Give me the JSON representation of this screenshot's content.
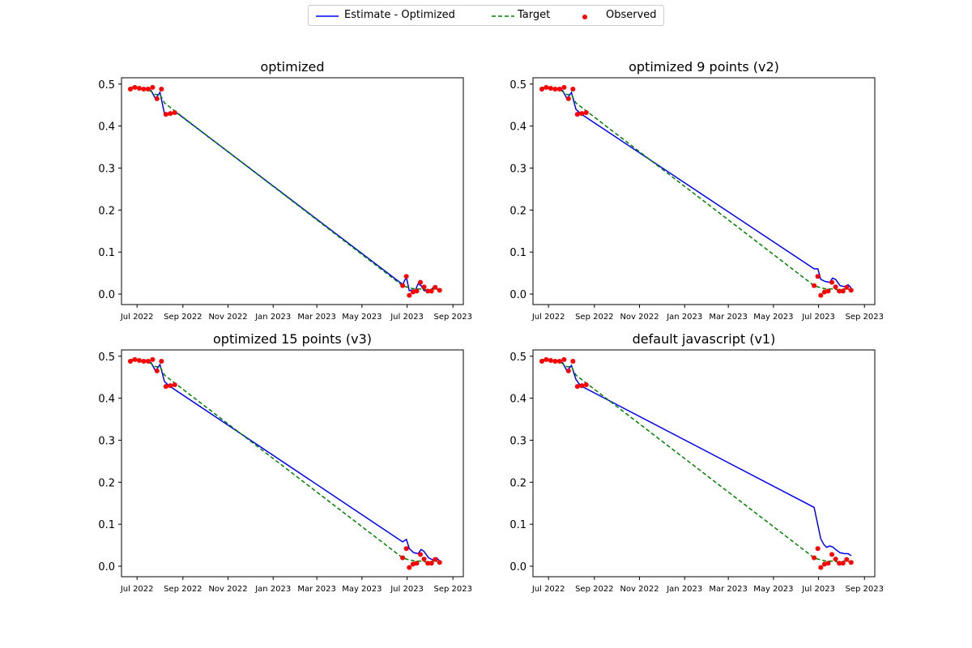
{
  "legend": {
    "items": [
      {
        "label": "Estimate - Optimized",
        "color": "#0000ff",
        "style": "solid"
      },
      {
        "label": "Target",
        "color": "#008000",
        "style": "dashed"
      },
      {
        "label": "Observed",
        "color": "#ff0000",
        "style": "marker"
      }
    ]
  },
  "chart_data": [
    {
      "type": "line",
      "title": "optimized",
      "ylim": [
        -0.025,
        0.515
      ],
      "yticks": [
        0.0,
        0.1,
        0.2,
        0.3,
        0.4,
        0.5
      ],
      "xticks": [
        "Jul 2022",
        "Sep 2022",
        "Nov 2022",
        "Jan 2023",
        "Mar 2023",
        "May 2023",
        "Jul 2023",
        "Sep 2023"
      ],
      "xlim": [
        "2022-06-10",
        "2023-09-15"
      ],
      "series": [
        {
          "name": "Estimate - Optimized",
          "x": [
            "2022-06-22",
            "2022-06-26",
            "2022-07-02",
            "2022-07-08",
            "2022-07-14",
            "2022-07-20",
            "2022-07-26",
            "2022-08-01",
            "2022-08-07",
            "2022-08-13",
            "2022-08-19",
            "2022-08-25",
            "2023-06-25",
            "2023-06-30",
            "2023-07-04",
            "2023-07-08",
            "2023-07-12",
            "2023-07-16",
            "2023-07-20",
            "2023-07-24",
            "2023-07-28",
            "2023-08-01",
            "2023-08-05",
            "2023-08-10",
            "2023-08-14"
          ],
          "values": [
            0.49,
            0.492,
            0.49,
            0.488,
            0.488,
            0.485,
            0.465,
            0.48,
            0.43,
            0.43,
            0.432,
            0.43,
            0.023,
            0.04,
            0.008,
            0.01,
            0.008,
            0.025,
            0.02,
            0.008,
            0.01,
            0.008,
            0.015,
            0.012,
            0.01
          ]
        },
        {
          "name": "Target",
          "x": [
            "2022-06-22",
            "2022-07-02",
            "2022-07-14",
            "2022-07-26",
            "2022-08-01",
            "2022-08-07",
            "2023-06-25",
            "2023-07-04",
            "2023-07-12",
            "2023-07-20",
            "2023-07-28",
            "2023-08-05",
            "2023-08-14"
          ],
          "values": [
            0.492,
            0.492,
            0.49,
            0.475,
            0.475,
            0.455,
            0.02,
            0.015,
            0.012,
            0.012,
            0.01,
            0.012,
            0.01
          ]
        },
        {
          "name": "Observed",
          "x": [
            "2022-06-22",
            "2022-06-28",
            "2022-07-04",
            "2022-07-10",
            "2022-07-16",
            "2022-07-22",
            "2022-07-28",
            "2022-08-03",
            "2022-08-09",
            "2022-08-15",
            "2022-08-21",
            "2023-06-25",
            "2023-06-30",
            "2023-07-04",
            "2023-07-09",
            "2023-07-14",
            "2023-07-19",
            "2023-07-24",
            "2023-07-29",
            "2023-08-03",
            "2023-08-08",
            "2023-08-14"
          ],
          "values": [
            0.488,
            0.492,
            0.49,
            0.488,
            0.488,
            0.492,
            0.465,
            0.488,
            0.428,
            0.43,
            0.432,
            0.02,
            0.042,
            -0.003,
            0.005,
            0.007,
            0.028,
            0.017,
            0.007,
            0.007,
            0.016,
            0.009
          ]
        }
      ]
    },
    {
      "type": "line",
      "title": "optimized 9 points (v2)",
      "ylim": [
        -0.025,
        0.515
      ],
      "yticks": [
        0.0,
        0.1,
        0.2,
        0.3,
        0.4,
        0.5
      ],
      "xticks": [
        "Jul 2022",
        "Sep 2022",
        "Nov 2022",
        "Jan 2023",
        "Mar 2023",
        "May 2023",
        "Jul 2023",
        "Sep 2023"
      ],
      "xlim": [
        "2022-06-10",
        "2023-09-15"
      ],
      "series": [
        {
          "name": "Estimate - Optimized",
          "x": [
            "2022-06-22",
            "2022-07-02",
            "2022-07-14",
            "2022-07-20",
            "2022-07-26",
            "2022-08-01",
            "2022-08-07",
            "2022-08-13",
            "2023-06-25",
            "2023-06-30",
            "2023-07-04",
            "2023-07-10",
            "2023-07-16",
            "2023-07-20",
            "2023-07-24",
            "2023-07-30",
            "2023-08-05",
            "2023-08-10",
            "2023-08-14"
          ],
          "values": [
            0.49,
            0.49,
            0.488,
            0.485,
            0.465,
            0.48,
            0.44,
            0.43,
            0.06,
            0.06,
            0.035,
            0.03,
            0.028,
            0.038,
            0.035,
            0.02,
            0.018,
            0.022,
            0.015
          ]
        },
        {
          "name": "Target",
          "x": [
            "2022-06-22",
            "2022-07-02",
            "2022-07-14",
            "2022-07-26",
            "2022-08-01",
            "2022-08-07",
            "2023-06-25",
            "2023-07-04",
            "2023-07-12",
            "2023-07-20",
            "2023-07-28",
            "2023-08-05",
            "2023-08-14"
          ],
          "values": [
            0.492,
            0.492,
            0.49,
            0.475,
            0.475,
            0.455,
            0.02,
            0.015,
            0.012,
            0.012,
            0.01,
            0.012,
            0.01
          ]
        },
        {
          "name": "Observed",
          "x": [
            "2022-06-22",
            "2022-06-28",
            "2022-07-04",
            "2022-07-10",
            "2022-07-16",
            "2022-07-22",
            "2022-07-28",
            "2022-08-03",
            "2022-08-09",
            "2022-08-15",
            "2022-08-21",
            "2023-06-25",
            "2023-06-30",
            "2023-07-04",
            "2023-07-09",
            "2023-07-14",
            "2023-07-19",
            "2023-07-24",
            "2023-07-29",
            "2023-08-03",
            "2023-08-08",
            "2023-08-14"
          ],
          "values": [
            0.488,
            0.492,
            0.49,
            0.488,
            0.488,
            0.492,
            0.465,
            0.488,
            0.428,
            0.43,
            0.432,
            0.02,
            0.042,
            -0.003,
            0.005,
            0.007,
            0.028,
            0.017,
            0.007,
            0.007,
            0.016,
            0.009
          ]
        }
      ]
    },
    {
      "type": "line",
      "title": "optimized 15 points (v3)",
      "ylim": [
        -0.025,
        0.515
      ],
      "yticks": [
        0.0,
        0.1,
        0.2,
        0.3,
        0.4,
        0.5
      ],
      "xticks": [
        "Jul 2022",
        "Sep 2022",
        "Nov 2022",
        "Jan 2023",
        "Mar 2023",
        "May 2023",
        "Jul 2023",
        "Sep 2023"
      ],
      "xlim": [
        "2022-06-10",
        "2023-09-15"
      ],
      "series": [
        {
          "name": "Estimate - Optimized",
          "x": [
            "2022-06-22",
            "2022-07-02",
            "2022-07-14",
            "2022-07-20",
            "2022-07-26",
            "2022-08-01",
            "2022-08-07",
            "2022-08-13",
            "2023-06-25",
            "2023-06-30",
            "2023-07-04",
            "2023-07-10",
            "2023-07-16",
            "2023-07-20",
            "2023-07-24",
            "2023-07-30",
            "2023-08-05",
            "2023-08-10",
            "2023-08-14"
          ],
          "values": [
            0.49,
            0.49,
            0.488,
            0.485,
            0.465,
            0.48,
            0.44,
            0.43,
            0.058,
            0.064,
            0.042,
            0.032,
            0.03,
            0.04,
            0.035,
            0.02,
            0.015,
            0.02,
            0.012
          ]
        },
        {
          "name": "Target",
          "x": [
            "2022-06-22",
            "2022-07-02",
            "2022-07-14",
            "2022-07-26",
            "2022-08-01",
            "2022-08-07",
            "2023-06-25",
            "2023-07-04",
            "2023-07-12",
            "2023-07-20",
            "2023-07-28",
            "2023-08-05",
            "2023-08-14"
          ],
          "values": [
            0.492,
            0.492,
            0.49,
            0.475,
            0.475,
            0.455,
            0.02,
            0.015,
            0.012,
            0.012,
            0.01,
            0.012,
            0.01
          ]
        },
        {
          "name": "Observed",
          "x": [
            "2022-06-22",
            "2022-06-28",
            "2022-07-04",
            "2022-07-10",
            "2022-07-16",
            "2022-07-22",
            "2022-07-28",
            "2022-08-03",
            "2022-08-09",
            "2022-08-15",
            "2022-08-21",
            "2023-06-25",
            "2023-06-30",
            "2023-07-04",
            "2023-07-09",
            "2023-07-14",
            "2023-07-19",
            "2023-07-24",
            "2023-07-29",
            "2023-08-03",
            "2023-08-08",
            "2023-08-14"
          ],
          "values": [
            0.488,
            0.492,
            0.49,
            0.488,
            0.488,
            0.492,
            0.465,
            0.488,
            0.428,
            0.43,
            0.432,
            0.02,
            0.042,
            -0.003,
            0.005,
            0.007,
            0.028,
            0.017,
            0.007,
            0.007,
            0.016,
            0.009
          ]
        }
      ]
    },
    {
      "type": "line",
      "title": "default javascript (v1)",
      "ylim": [
        -0.025,
        0.515
      ],
      "yticks": [
        0.0,
        0.1,
        0.2,
        0.3,
        0.4,
        0.5
      ],
      "xticks": [
        "Jul 2022",
        "Sep 2022",
        "Nov 2022",
        "Jan 2023",
        "Mar 2023",
        "May 2023",
        "Jul 2023",
        "Sep 2023"
      ],
      "xlim": [
        "2022-06-10",
        "2023-09-15"
      ],
      "series": [
        {
          "name": "Estimate - Optimized",
          "x": [
            "2022-06-22",
            "2022-07-02",
            "2022-07-14",
            "2022-07-20",
            "2022-07-26",
            "2022-08-01",
            "2022-08-07",
            "2022-08-13",
            "2023-06-25",
            "2023-07-04",
            "2023-07-08",
            "2023-07-12",
            "2023-07-16",
            "2023-07-20",
            "2023-07-24",
            "2023-07-30",
            "2023-08-05",
            "2023-08-10",
            "2023-08-14"
          ],
          "values": [
            0.49,
            0.49,
            0.488,
            0.485,
            0.465,
            0.478,
            0.445,
            0.43,
            0.14,
            0.065,
            0.052,
            0.045,
            0.048,
            0.046,
            0.04,
            0.032,
            0.03,
            0.03,
            0.025
          ]
        },
        {
          "name": "Target",
          "x": [
            "2022-06-22",
            "2022-07-02",
            "2022-07-14",
            "2022-07-26",
            "2022-08-01",
            "2022-08-07",
            "2023-06-25",
            "2023-07-04",
            "2023-07-12",
            "2023-07-20",
            "2023-07-28",
            "2023-08-05",
            "2023-08-14"
          ],
          "values": [
            0.492,
            0.492,
            0.49,
            0.475,
            0.475,
            0.455,
            0.02,
            0.015,
            0.012,
            0.012,
            0.01,
            0.012,
            0.01
          ]
        },
        {
          "name": "Observed",
          "x": [
            "2022-06-22",
            "2022-06-28",
            "2022-07-04",
            "2022-07-10",
            "2022-07-16",
            "2022-07-22",
            "2022-07-28",
            "2022-08-03",
            "2022-08-09",
            "2022-08-15",
            "2022-08-21",
            "2023-06-25",
            "2023-06-30",
            "2023-07-04",
            "2023-07-09",
            "2023-07-14",
            "2023-07-19",
            "2023-07-24",
            "2023-07-29",
            "2023-08-03",
            "2023-08-08",
            "2023-08-14"
          ],
          "values": [
            0.488,
            0.492,
            0.49,
            0.488,
            0.488,
            0.492,
            0.465,
            0.488,
            0.428,
            0.43,
            0.432,
            0.02,
            0.042,
            -0.003,
            0.005,
            0.007,
            0.028,
            0.017,
            0.007,
            0.007,
            0.016,
            0.009
          ]
        }
      ]
    }
  ]
}
